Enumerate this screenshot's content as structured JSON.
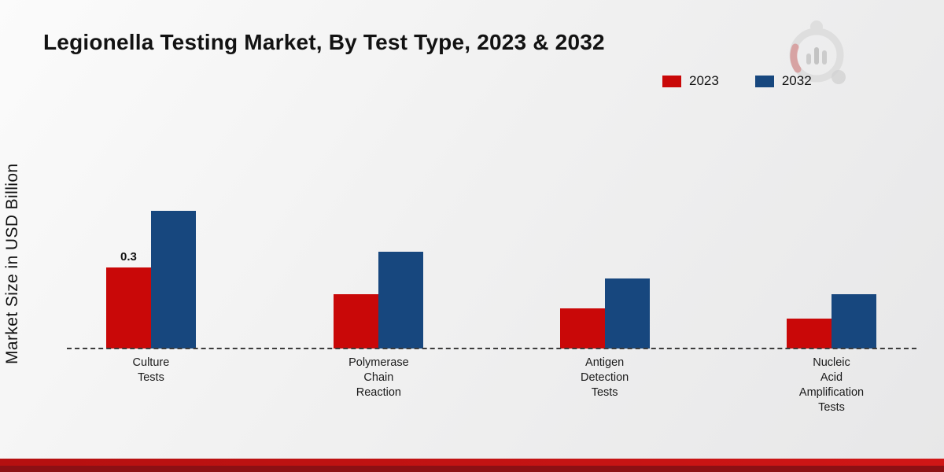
{
  "title": "Legionella Testing Market, By Test Type, 2023 & 2032",
  "y_axis_label": "Market Size in USD Billion",
  "chart_data": {
    "type": "bar",
    "title": "Legionella Testing Market, By Test Type, 2023 & 2032",
    "xlabel": "",
    "ylabel": "Market Size in USD Billion",
    "ylim": [
      0,
      0.6
    ],
    "grid": false,
    "legend_position": "top-right",
    "categories": [
      "Culture Tests",
      "Polymerase Chain Reaction",
      "Antigen Detection Tests",
      "Nucleic Acid Amplification Tests"
    ],
    "category_label_lines": [
      [
        "Culture",
        "Tests"
      ],
      [
        "Polymerase",
        "Chain",
        "Reaction"
      ],
      [
        "Antigen",
        "Detection",
        "Tests"
      ],
      [
        "Nucleic",
        "Acid",
        "Amplification",
        "Tests"
      ]
    ],
    "series": [
      {
        "name": "2023",
        "color": "#c90808",
        "values": [
          0.3,
          0.2,
          0.15,
          0.11
        ],
        "labels": [
          "0.3",
          "",
          "",
          ""
        ]
      },
      {
        "name": "2032",
        "color": "#17477e",
        "values": [
          0.51,
          0.36,
          0.26,
          0.2
        ],
        "labels": [
          "",
          "",
          "",
          ""
        ]
      }
    ]
  },
  "footer": {
    "accent_red": "#c01212",
    "accent_dark_red": "#8c1014"
  }
}
